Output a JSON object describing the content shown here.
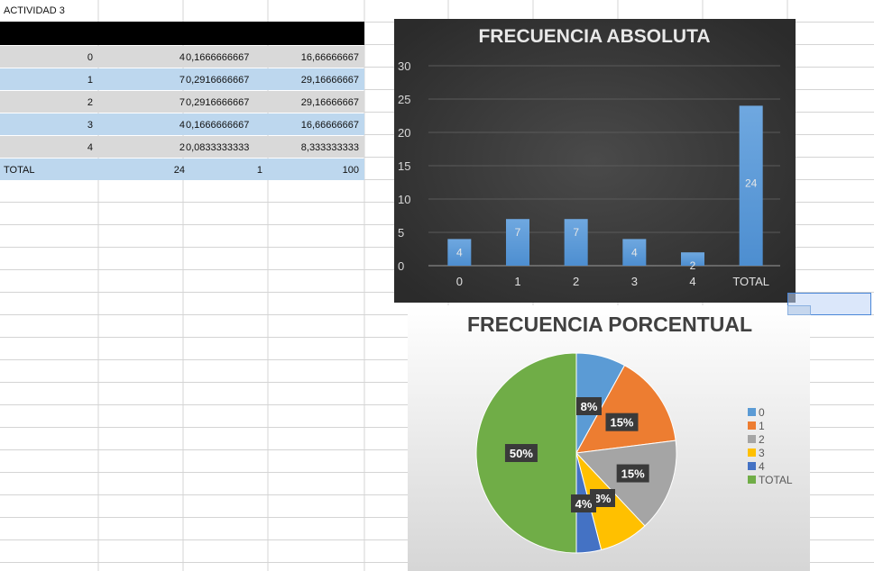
{
  "sheet": {
    "title_cell": "ACTIVIDAD 3",
    "rows": [
      [
        "0",
        "4",
        "0,1666666667",
        "16,66666667"
      ],
      [
        "1",
        "7",
        "0,2916666667",
        "29,16666667"
      ],
      [
        "2",
        "7",
        "0,2916666667",
        "29,16666667"
      ],
      [
        "3",
        "4",
        "0,1666666667",
        "16,66666667"
      ],
      [
        "4",
        "2",
        "0,0833333333",
        "8,333333333"
      ]
    ],
    "total_row": [
      "TOTAL",
      "24",
      "1",
      "100"
    ]
  },
  "chart_data": [
    {
      "type": "bar",
      "title": "FRECUENCIA ABSOLUTA",
      "categories": [
        "0",
        "1",
        "2",
        "3",
        "4",
        "TOTAL"
      ],
      "values": [
        4,
        7,
        7,
        4,
        2,
        24
      ],
      "data_labels": [
        "4",
        "7",
        "7",
        "4",
        "2",
        "24"
      ],
      "ylim": [
        0,
        30
      ],
      "yticks": [
        "0",
        "5",
        "10",
        "15",
        "20",
        "25",
        "30"
      ],
      "grid": true,
      "bar_color": "#5b9bd5"
    },
    {
      "type": "pie",
      "title": "FRECUENCIA PORCENTUAL",
      "categories": [
        "0",
        "1",
        "2",
        "3",
        "4",
        "TOTAL"
      ],
      "values": [
        8,
        15,
        15,
        8,
        4,
        50
      ],
      "data_labels": [
        "8%",
        "15%",
        "15%",
        "8%",
        "4%",
        "50%"
      ],
      "colors": [
        "#5b9bd5",
        "#ed7d31",
        "#a5a5a5",
        "#ffc000",
        "#4472c4",
        "#70ad47"
      ],
      "legend": [
        "0",
        "1",
        "2",
        "3",
        "4",
        "TOTAL"
      ],
      "legend_position": "right"
    }
  ]
}
